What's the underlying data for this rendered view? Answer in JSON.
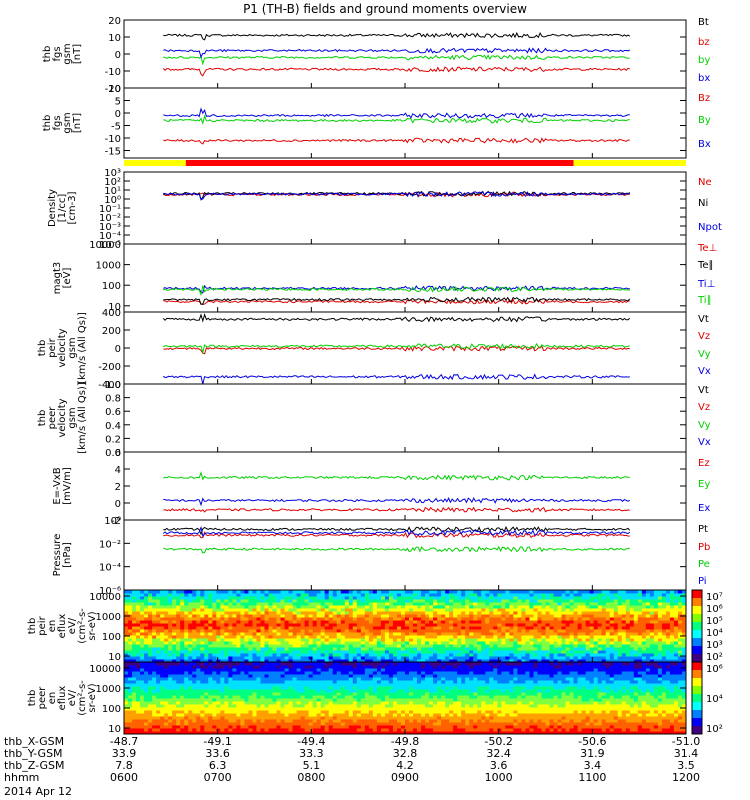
{
  "title": "P1 (TH-B) fields and ground moments overview",
  "colors": {
    "black": "#000000",
    "red": "#e00000",
    "green": "#00d000",
    "blue": "#0000e0",
    "yellow": "#ffff00",
    "bar_red": "#ff0000"
  },
  "chart_data": [
    {
      "type": "line",
      "id": "fgs_gsm",
      "ylabel": [
        "thb",
        "fgs",
        "gsm",
        "[nT]"
      ],
      "ylim": [
        -20,
        20
      ],
      "yticks": [
        -20,
        -10,
        0,
        10,
        20
      ],
      "yscale": "linear",
      "series": [
        {
          "name": "Bt",
          "color": "black",
          "level": 11
        },
        {
          "name": "bz",
          "color": "red",
          "level": -9
        },
        {
          "name": "by",
          "color": "green",
          "level": -2
        },
        {
          "name": "bx",
          "color": "blue",
          "level": 2
        }
      ]
    },
    {
      "type": "line",
      "id": "fgs_gsm_dsl",
      "ylabel": [
        "thb",
        "fgs",
        "gsm",
        "[nT]"
      ],
      "ylim": [
        -18,
        10
      ],
      "yticks": [
        -15,
        -10,
        -5,
        0,
        5,
        10
      ],
      "yscale": "linear",
      "series": [
        {
          "name": "Bz",
          "color": "red",
          "level": -11
        },
        {
          "name": "By",
          "color": "green",
          "level": -3
        },
        {
          "name": "Bx",
          "color": "blue",
          "level": -1
        }
      ]
    },
    {
      "type": "line",
      "id": "density",
      "ylabel": [
        "Density",
        "[1/cc]",
        "[cm-3]"
      ],
      "ylim": [
        -5,
        3
      ],
      "yticks": [
        3,
        2,
        1,
        0,
        -1,
        -2,
        -3,
        -4,
        -5
      ],
      "ytick_labels": [
        "10³",
        "10²",
        "10¹",
        "10⁰",
        "10⁻¹",
        "10⁻²",
        "10⁻³",
        "10⁻⁴",
        "10⁻⁵"
      ],
      "yscale": "log",
      "series": [
        {
          "name": "Ne",
          "color": "red",
          "level": 0.5
        },
        {
          "name": "Ni",
          "color": "black",
          "level": 0.6
        },
        {
          "name": "Npot",
          "color": "blue",
          "level": 0.55
        }
      ]
    },
    {
      "type": "line",
      "id": "temperature",
      "ylabel": [
        "magt3",
        "[eV]"
      ],
      "ylim": [
        0.7,
        4
      ],
      "yticks": [
        1,
        2,
        3,
        4
      ],
      "ytick_labels": [
        "10",
        "100",
        "1000",
        "10000"
      ],
      "yscale": "log",
      "series": [
        {
          "name": "Te⊥",
          "color": "red",
          "level": 1.2
        },
        {
          "name": "Te∥",
          "color": "black",
          "level": 1.3
        },
        {
          "name": "Ti⊥",
          "color": "blue",
          "level": 1.85
        },
        {
          "name": "Ti∥",
          "color": "green",
          "level": 1.8
        }
      ]
    },
    {
      "type": "line",
      "id": "peir_velocity",
      "ylabel": [
        "thb",
        "peir",
        "velocity",
        "gsm",
        "[km/s (All Qs)]"
      ],
      "ylim": [
        -400,
        400
      ],
      "yticks": [
        -400,
        -200,
        0,
        200,
        400
      ],
      "yscale": "linear",
      "series": [
        {
          "name": "Vt",
          "color": "black",
          "level": 320
        },
        {
          "name": "Vz",
          "color": "red",
          "level": -5
        },
        {
          "name": "Vy",
          "color": "green",
          "level": 20
        },
        {
          "name": "Vx",
          "color": "blue",
          "level": -320
        }
      ]
    },
    {
      "type": "line",
      "id": "peer_velocity",
      "ylabel": [
        "thb",
        "peer",
        "velocity",
        "gsm",
        "[km/s (All Qs)]"
      ],
      "ylim": [
        0,
        1
      ],
      "yticks": [
        0,
        0.2,
        0.4,
        0.6,
        0.8,
        1.0
      ],
      "ytick_labels": [
        "0.0",
        "0.2",
        "0.4",
        "0.6",
        "0.8",
        "1.0"
      ],
      "yscale": "linear",
      "series": [
        {
          "name": "Vt",
          "color": "black",
          "level": null
        },
        {
          "name": "Vz",
          "color": "red",
          "level": null
        },
        {
          "name": "Vy",
          "color": "green",
          "level": null
        },
        {
          "name": "Vx",
          "color": "blue",
          "level": null
        }
      ]
    },
    {
      "type": "line",
      "id": "efield",
      "ylabel": [
        "E=-VxB",
        "[mV/m]"
      ],
      "ylim": [
        -2,
        6
      ],
      "yticks": [
        -2,
        0,
        2,
        4,
        6
      ],
      "yscale": "linear",
      "series": [
        {
          "name": "Ez",
          "color": "red",
          "level": -0.8
        },
        {
          "name": "Ey",
          "color": "green",
          "level": 3
        },
        {
          "name": "Ex",
          "color": "blue",
          "level": 0.3
        }
      ]
    },
    {
      "type": "line",
      "id": "pressure",
      "ylabel": [
        "Pressure",
        "[nPa]"
      ],
      "ylim": [
        -6,
        0
      ],
      "yticks": [
        0,
        -2,
        -4,
        -6
      ],
      "ytick_labels": [
        "10⁰",
        "10⁻²",
        "10⁻⁴",
        "10⁻⁶"
      ],
      "yscale": "log",
      "series": [
        {
          "name": "Pt",
          "color": "black",
          "level": -0.8
        },
        {
          "name": "Pb",
          "color": "red",
          "level": -1.3
        },
        {
          "name": "Pe",
          "color": "green",
          "level": -2.5
        },
        {
          "name": "Pi",
          "color": "blue",
          "level": -1.1
        }
      ]
    },
    {
      "type": "heatmap",
      "id": "peir_en_eflux",
      "ylabel": [
        "thb",
        "peir",
        "en",
        "eflux",
        "eV/",
        "(cm²-s-",
        "sr-eV)"
      ],
      "ylim": [
        0.7,
        4.3
      ],
      "yticks": [
        1,
        2,
        3,
        4
      ],
      "ytick_labels": [
        "10",
        "100",
        "1000",
        "10000"
      ],
      "yscale": "log",
      "colorbar": {
        "ticks": [
          "10²",
          "10³",
          "10⁴",
          "10⁵",
          "10⁶",
          "10⁷"
        ]
      }
    },
    {
      "type": "heatmap",
      "id": "peer_en_eflux",
      "ylabel": [
        "thb",
        "peer",
        "en",
        "eflux",
        "eV/",
        "(cm²-s-",
        "sr-eV)"
      ],
      "ylim": [
        0.7,
        4.3
      ],
      "yticks": [
        1,
        2,
        3,
        4
      ],
      "ytick_labels": [
        "10",
        "100",
        "1000",
        "10000"
      ],
      "yscale": "log",
      "colorbar": {
        "ticks": [
          "10²",
          "10⁴",
          "10⁶"
        ]
      }
    }
  ],
  "region_bar": [
    {
      "start": 0,
      "end": 0.11,
      "color": "yellow"
    },
    {
      "start": 0.11,
      "end": 0.8,
      "color": "bar_red"
    },
    {
      "start": 0.8,
      "end": 1.0,
      "color": "yellow"
    }
  ],
  "xaxis": {
    "rows": [
      {
        "label": "thb_X-GSM",
        "values": [
          "-48.7",
          "-49.1",
          "-49.4",
          "-49.8",
          "-50.2",
          "-50.6",
          "-51.0"
        ]
      },
      {
        "label": "thb_Y-GSM",
        "values": [
          "33.9",
          "33.6",
          "33.3",
          "32.8",
          "32.4",
          "31.9",
          "31.4"
        ]
      },
      {
        "label": "thb_Z-GSM",
        "values": [
          "7.8",
          "6.3",
          "5.1",
          "4.2",
          "3.6",
          "3.4",
          "3.5"
        ]
      },
      {
        "label": "hhmm",
        "values": [
          "0600",
          "0700",
          "0800",
          "0900",
          "1000",
          "1100",
          "1200"
        ]
      }
    ],
    "date": "2014 Apr 12"
  }
}
